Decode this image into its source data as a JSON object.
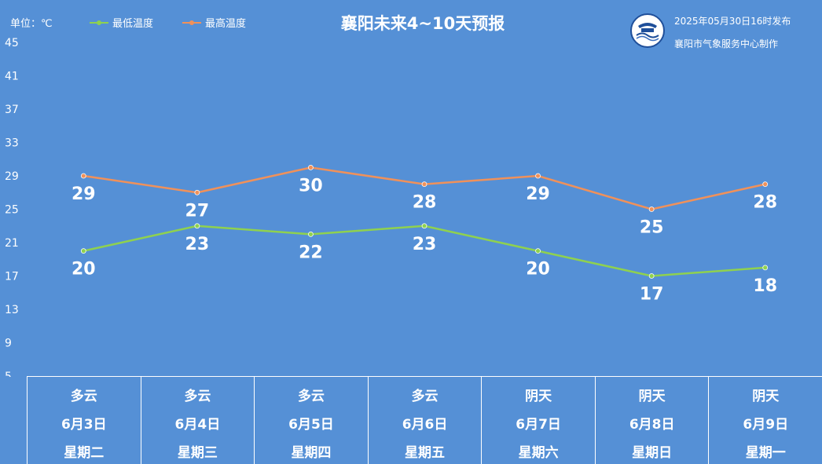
{
  "header": {
    "unit_label": "单位：℃",
    "title": "襄阳未来4~10天预报",
    "publish_time": "2025年05月30日16时发布",
    "publisher": "襄阳市气象服务中心制作",
    "logo_icon": "weather-service-logo-icon"
  },
  "colors": {
    "background": "#5590d6",
    "low_line": "#8fd14f",
    "high_line": "#f0915a",
    "text": "#ffffff"
  },
  "chart_data": {
    "type": "line",
    "categories": [
      "6月3日",
      "6月4日",
      "6月5日",
      "6月6日",
      "6月7日",
      "6月8日",
      "6月9日"
    ],
    "series": [
      {
        "name": "最低温度",
        "values": [
          20,
          23,
          22,
          23,
          20,
          17,
          18
        ]
      },
      {
        "name": "最高温度",
        "values": [
          29,
          27,
          30,
          28,
          29,
          25,
          28
        ]
      }
    ],
    "yticks": [
      5,
      9,
      13,
      17,
      21,
      25,
      29,
      33,
      37,
      41,
      45
    ],
    "ylim": [
      5,
      45
    ],
    "grid": false,
    "legend_position": "top-left",
    "ylabel": "单位：℃"
  },
  "days": [
    {
      "weather": "多云",
      "date": "6月3日",
      "weekday": "星期二"
    },
    {
      "weather": "多云",
      "date": "6月4日",
      "weekday": "星期三"
    },
    {
      "weather": "多云",
      "date": "6月5日",
      "weekday": "星期四"
    },
    {
      "weather": "多云",
      "date": "6月6日",
      "weekday": "星期五"
    },
    {
      "weather": "阴天",
      "date": "6月7日",
      "weekday": "星期六"
    },
    {
      "weather": "阴天",
      "date": "6月8日",
      "weekday": "星期日"
    },
    {
      "weather": "阴天",
      "date": "6月9日",
      "weekday": "星期一"
    }
  ]
}
